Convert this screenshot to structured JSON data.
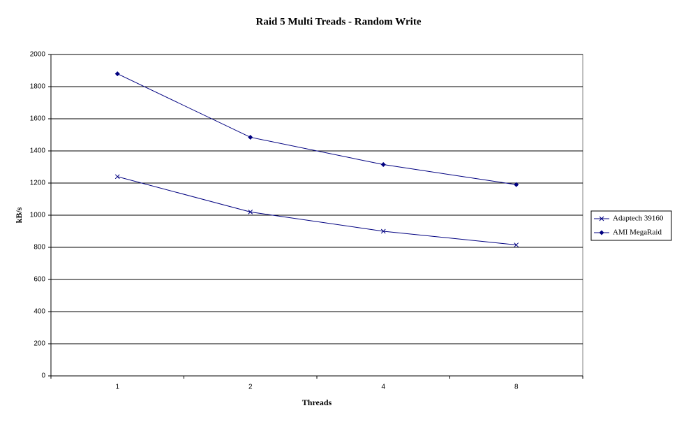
{
  "chart_data": {
    "type": "line",
    "title": "Raid 5 Multi Treads - Random Write",
    "x_label": "Threads",
    "y_label": "kB/s",
    "categories": [
      "1",
      "2",
      "4",
      "8"
    ],
    "series": [
      {
        "name": "Adaptech 39160",
        "color": "#000080",
        "marker": "x",
        "values": [
          1240,
          1020,
          900,
          815
        ]
      },
      {
        "name": "AMI MegaRaid",
        "color": "#000080",
        "marker": "diamond",
        "values": [
          1880,
          1485,
          1315,
          1190
        ]
      }
    ],
    "ylim": [
      0,
      2000
    ],
    "yticks": [
      0,
      200,
      400,
      600,
      800,
      1000,
      1200,
      1400,
      1600,
      1800,
      2000
    ],
    "grid": true,
    "legend": "right"
  }
}
